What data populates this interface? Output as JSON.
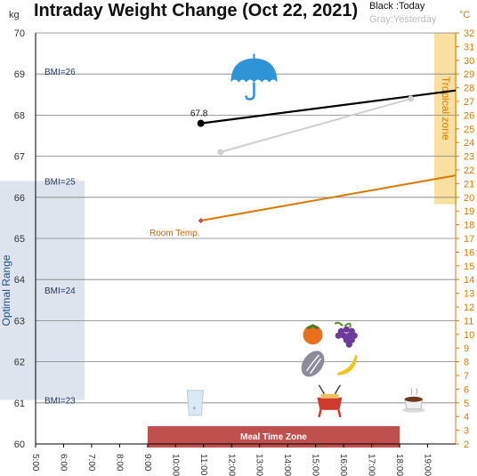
{
  "chart_data": {
    "type": "line",
    "title": "Intraday Weight Change (Oct 22, 2021)",
    "legend": {
      "black": "Black :Today",
      "gray": "Gray:Yesterday"
    },
    "y_left": {
      "unit": "kg",
      "min": 60,
      "max": 70,
      "ticks": [
        "60",
        "61",
        "62",
        "63",
        "64",
        "65",
        "66",
        "67",
        "68",
        "69",
        "70"
      ]
    },
    "y_right": {
      "unit": "°C",
      "min": 2,
      "max": 32,
      "ticks": [
        "2",
        "3",
        "4",
        "5",
        "6",
        "7",
        "8",
        "9",
        "10",
        "11",
        "12",
        "13",
        "14",
        "15",
        "16",
        "17",
        "18",
        "19",
        "20",
        "21",
        "22",
        "23",
        "24",
        "25",
        "26",
        "27",
        "28",
        "29",
        "30",
        "31",
        "32"
      ]
    },
    "x": {
      "min": 5,
      "max": 20,
      "ticks": [
        "5:00",
        "6:00",
        "7:00",
        "8:00",
        "9:00",
        "10:00",
        "11:00",
        "12:00",
        "13:00",
        "14:00",
        "15:00",
        "16:00",
        "17:00",
        "18:00",
        "19:00"
      ]
    },
    "grid": true,
    "bmi_lines": [
      {
        "label": "BMI=26",
        "kg": 69.07
      },
      {
        "label": "BMI=25",
        "kg": 66.4
      },
      {
        "label": "BMI=24",
        "kg": 63.74
      },
      {
        "label": "BMI=23",
        "kg": 61.07
      }
    ],
    "optimal_range": {
      "label": "Optimal Range",
      "kg_from": 61.07,
      "kg_to": 66.4
    },
    "tropical_zone": {
      "label": "Tropical zone",
      "temp_from": 19.5,
      "temp_to": 32
    },
    "meal_time_zone": {
      "label": "Meal Time Zone",
      "from": 9,
      "to": 18
    },
    "series": [
      {
        "name": "Today",
        "color": "#000000",
        "axis": "left",
        "points": [
          [
            10.9,
            67.8
          ],
          [
            20,
            68.6
          ]
        ],
        "data_label": "67.8"
      },
      {
        "name": "Yesterday",
        "color": "#d0d0d0",
        "axis": "left",
        "points": [
          [
            11.6,
            67.1
          ],
          [
            18.4,
            68.4
          ]
        ]
      },
      {
        "name": "Room Temp.",
        "color": "#d87a00",
        "axis": "right",
        "points": [
          [
            10.9,
            18.3
          ],
          [
            20,
            21.6
          ]
        ]
      }
    ],
    "icons": [
      {
        "name": "umbrella-icon",
        "x": 12.8,
        "kg": 68.8
      },
      {
        "name": "persimmon-icon",
        "x": 14.9,
        "kg": 62.7
      },
      {
        "name": "grapes-icon",
        "x": 16.1,
        "kg": 62.7
      },
      {
        "name": "hop-cone-icon",
        "x": 14.9,
        "kg": 61.95
      },
      {
        "name": "banana-icon",
        "x": 16.1,
        "kg": 61.95
      },
      {
        "name": "water-glass-icon",
        "x": 10.7,
        "kg": 61.0
      },
      {
        "name": "fondue-pot-icon",
        "x": 15.5,
        "kg": 61.0
      },
      {
        "name": "cocoa-cup-icon",
        "x": 18.5,
        "kg": 61.0
      }
    ]
  },
  "colors": {
    "today": "#000000",
    "yesterday": "#d0d0d0",
    "room_temp": "#d87a00",
    "optimal": "#dde4ee",
    "tropical": "#f9e0a0",
    "meal": "#c0504d",
    "grid": "#808080"
  }
}
